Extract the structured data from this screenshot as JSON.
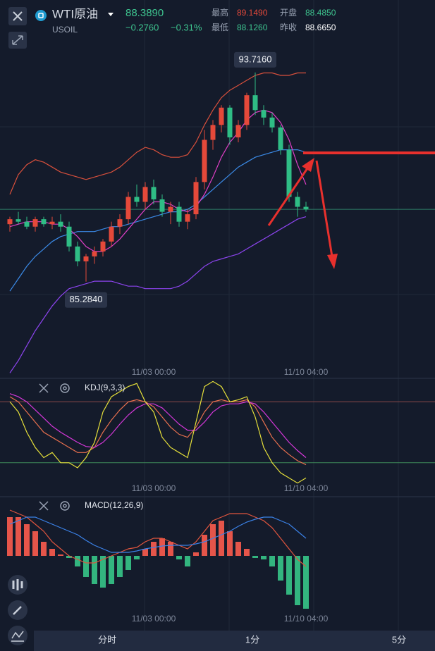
{
  "header": {
    "symbol": "WTI原油",
    "code": "USOIL",
    "price": "88.3890",
    "change": "−0.2760",
    "change_pct": "−0.31%",
    "stats": [
      {
        "label": "最高",
        "value": "89.1490"
      },
      {
        "label": "最低",
        "value": "88.1260"
      },
      {
        "label": "开盘",
        "value": "88.4850"
      },
      {
        "label": "昨收",
        "value": "88.6650"
      }
    ]
  },
  "chart_data": [
    {
      "type": "candlestick",
      "categories": [
        null,
        null,
        null,
        null,
        null,
        null,
        null,
        null,
        null,
        null,
        null,
        null,
        null,
        null,
        null,
        null,
        null,
        "11/03 00:00",
        null,
        null,
        null,
        null,
        null,
        null,
        null,
        null,
        null,
        null,
        null,
        null,
        null,
        null,
        null,
        null,
        null,
        "11/10 04:00"
      ],
      "open": [
        87.6,
        87.8,
        87.7,
        87.5,
        87.8,
        87.6,
        87.7,
        87.5,
        86.7,
        86.1,
        86.3,
        86.5,
        86.9,
        87.5,
        87.8,
        88.7,
        88.5,
        89.1,
        88.6,
        88.1,
        88.3,
        87.7,
        88.0,
        89.3,
        91.0,
        91.6,
        92.3,
        91.1,
        91.6,
        92.8,
        92.2,
        91.9,
        91.5,
        90.6,
        88.7,
        88.3
      ],
      "high": [
        87.9,
        88.1,
        87.9,
        87.9,
        87.9,
        87.9,
        88.0,
        87.7,
        86.9,
        86.4,
        86.7,
        87.0,
        87.7,
        88.0,
        88.9,
        89.2,
        89.3,
        89.4,
        88.8,
        88.5,
        88.5,
        88.2,
        89.5,
        91.4,
        91.8,
        92.4,
        92.4,
        91.8,
        92.9,
        93.716,
        92.4,
        92.1,
        91.6,
        90.8,
        88.9,
        88.5
      ],
      "low": [
        87.3,
        87.6,
        87.4,
        87.3,
        87.5,
        87.4,
        87.3,
        86.5,
        85.9,
        85.284,
        86.0,
        86.3,
        86.7,
        87.2,
        87.6,
        88.3,
        88.2,
        88.4,
        87.9,
        87.6,
        87.5,
        87.4,
        87.8,
        89.0,
        90.6,
        91.3,
        90.8,
        90.9,
        91.4,
        92.0,
        91.6,
        91.3,
        90.4,
        88.5,
        87.9,
        88.1
      ],
      "close": [
        87.8,
        87.7,
        87.5,
        87.8,
        87.6,
        87.7,
        87.5,
        86.7,
        86.1,
        86.3,
        86.5,
        86.9,
        87.5,
        87.8,
        88.7,
        88.5,
        89.1,
        88.6,
        88.1,
        88.3,
        87.7,
        88.0,
        89.3,
        91.0,
        91.6,
        92.3,
        91.1,
        91.6,
        92.8,
        92.2,
        91.9,
        91.5,
        90.6,
        88.7,
        88.3,
        88.2
      ],
      "up_color": "#e5493a",
      "down_color": "#2fbd85",
      "last_color": "#2f7f68",
      "lines": [
        {
          "color": "#d9503c",
          "values": [
            88.8,
            89.6,
            90.0,
            90.2,
            90.1,
            89.9,
            89.7,
            89.6,
            89.5,
            89.4,
            89.5,
            89.6,
            89.7,
            89.9,
            90.2,
            90.5,
            90.7,
            90.6,
            90.4,
            90.3,
            90.3,
            90.4,
            90.9,
            91.6,
            92.2,
            92.7,
            93.0,
            93.2,
            93.4,
            93.6,
            93.7,
            93.7,
            93.6,
            93.6,
            93.7,
            93.7
          ]
        },
        {
          "color": "#8c44ee",
          "values": [
            81.6,
            82.1,
            82.7,
            83.3,
            83.8,
            84.3,
            84.7,
            85.0,
            85.1,
            85.2,
            85.3,
            85.3,
            85.3,
            85.2,
            85.1,
            85.1,
            85.0,
            85.0,
            85.0,
            85.0,
            85.1,
            85.3,
            85.6,
            85.9,
            86.1,
            86.2,
            86.3,
            86.4,
            86.6,
            86.8,
            87.0,
            87.2,
            87.4,
            87.6,
            87.8,
            87.9
          ]
        },
        {
          "color": "#3b8be8",
          "values": [
            84.9,
            85.4,
            85.9,
            86.3,
            86.6,
            86.9,
            87.1,
            87.2,
            87.3,
            87.3,
            87.3,
            87.4,
            87.5,
            87.5,
            87.6,
            87.7,
            87.8,
            87.9,
            88.0,
            88.1,
            88.1,
            88.2,
            88.4,
            88.7,
            89.0,
            89.3,
            89.6,
            89.9,
            90.1,
            90.3,
            90.4,
            90.5,
            90.6,
            90.6,
            90.6,
            90.5
          ]
        },
        {
          "color": "#e03fc6",
          "values": [
            87.5,
            87.6,
            87.7,
            87.7,
            87.7,
            87.6,
            87.6,
            87.4,
            87.1,
            86.7,
            86.5,
            86.5,
            86.7,
            87.0,
            87.4,
            87.8,
            88.2,
            88.5,
            88.5,
            88.4,
            88.2,
            88.1,
            88.3,
            88.8,
            89.5,
            90.3,
            90.9,
            91.3,
            91.8,
            92.1,
            92.2,
            92.1,
            91.7,
            91.0,
            90.0,
            89.2
          ]
        }
      ],
      "annotations": [
        {
          "value": 93.716,
          "label": "93.7160"
        },
        {
          "value": 85.284,
          "label": "85.2840"
        }
      ],
      "ylim": [
        81.44,
        96.64
      ]
    },
    {
      "type": "line",
      "title": "KDJ(9,3,3)",
      "categories": [
        null,
        null,
        null,
        null,
        null,
        null,
        null,
        null,
        null,
        null,
        null,
        null,
        null,
        null,
        null,
        null,
        null,
        "11/03 00:00",
        null,
        null,
        null,
        null,
        null,
        null,
        null,
        null,
        null,
        null,
        null,
        null,
        null,
        null,
        null,
        null,
        null,
        "11/10 04:00"
      ],
      "series": [
        {
          "color": "#e8704e",
          "values": [
            85,
            80,
            70,
            60,
            50,
            45,
            40,
            35,
            30,
            30,
            35,
            50,
            62,
            72,
            80,
            82,
            80,
            75,
            65,
            55,
            48,
            45,
            55,
            70,
            80,
            82,
            80,
            80,
            82,
            75,
            60,
            45,
            35,
            28,
            22,
            18
          ]
        },
        {
          "color": "#d437d8",
          "values": [
            88,
            85,
            80,
            72,
            64,
            56,
            50,
            45,
            40,
            36,
            35,
            40,
            48,
            58,
            67,
            74,
            78,
            78,
            74,
            66,
            58,
            52,
            52,
            60,
            70,
            76,
            78,
            78,
            80,
            78,
            70,
            60,
            50,
            40,
            32,
            25
          ]
        },
        {
          "color": "#e6e03a",
          "values": [
            80,
            70,
            50,
            35,
            25,
            30,
            20,
            20,
            15,
            25,
            40,
            70,
            85,
            90,
            95,
            98,
            80,
            70,
            45,
            35,
            30,
            25,
            60,
            95,
            100,
            95,
            80,
            82,
            85,
            65,
            35,
            20,
            10,
            5,
            0,
            5
          ]
        }
      ],
      "hlines": [
        {
          "value": 80,
          "color": "#8a4a4a"
        },
        {
          "value": 20,
          "color": "#3f8a5a"
        }
      ],
      "ylim": [
        -10,
        101
      ]
    },
    {
      "type": "macd",
      "title": "MACD(12,26,9)",
      "categories": [
        null,
        null,
        null,
        null,
        null,
        null,
        null,
        null,
        null,
        null,
        null,
        null,
        null,
        null,
        null,
        null,
        null,
        "11/03 00:00",
        null,
        null,
        null,
        null,
        null,
        null,
        null,
        null,
        null,
        null,
        null,
        null,
        null,
        null,
        null,
        null,
        null,
        "11/10 04:00"
      ],
      "values": [
        0.55,
        0.55,
        0.45,
        0.35,
        0.2,
        0.1,
        0.02,
        -0.03,
        -0.15,
        -0.3,
        -0.4,
        -0.45,
        -0.4,
        -0.3,
        -0.2,
        -0.05,
        0.1,
        0.2,
        0.25,
        0.2,
        -0.05,
        -0.15,
        0.05,
        0.3,
        0.45,
        0.5,
        0.35,
        0.2,
        0.1,
        -0.03,
        -0.05,
        -0.15,
        -0.35,
        -0.55,
        -0.7,
        -0.75
      ],
      "up_color": "#e5554a",
      "down_color": "#33b57f",
      "series": [
        {
          "color": "#e0553e",
          "values": [
            0.65,
            0.6,
            0.55,
            0.45,
            0.35,
            0.2,
            0.1,
            0,
            -0.05,
            -0.1,
            -0.1,
            -0.05,
            0,
            0.05,
            0.1,
            0.12,
            0.2,
            0.25,
            0.25,
            0.2,
            0.15,
            0.1,
            0.2,
            0.35,
            0.5,
            0.55,
            0.6,
            0.6,
            0.6,
            0.55,
            0.5,
            0.4,
            0.25,
            0.1,
            -0.05,
            -0.15
          ]
        },
        {
          "color": "#3b82e8",
          "values": [
            0.45,
            0.5,
            0.55,
            0.55,
            0.5,
            0.45,
            0.4,
            0.35,
            0.3,
            0.22,
            0.15,
            0.1,
            0.05,
            0.05,
            0.05,
            0.07,
            0.1,
            0.12,
            0.14,
            0.15,
            0.15,
            0.15,
            0.17,
            0.2,
            0.25,
            0.3,
            0.35,
            0.42,
            0.48,
            0.52,
            0.55,
            0.55,
            0.5,
            0.45,
            0.35,
            0.25
          ]
        }
      ],
      "ylim": [
        -0.8,
        0.8
      ]
    }
  ],
  "tabs": [
    "分时",
    "1分",
    "5分"
  ]
}
